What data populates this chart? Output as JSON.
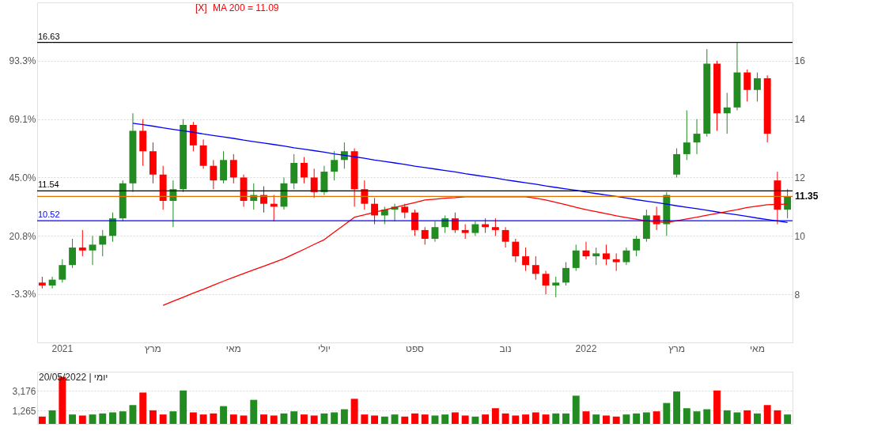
{
  "chart_data": [
    {
      "type": "candlestick",
      "categories": [
        null,
        null,
        "2021",
        null,
        null,
        null,
        null,
        null,
        null,
        null,
        null,
        "מרץ",
        null,
        null,
        null,
        null,
        null,
        null,
        null,
        "מאי",
        null,
        null,
        null,
        null,
        null,
        null,
        null,
        null,
        "יולי",
        null,
        null,
        null,
        null,
        null,
        null,
        null,
        null,
        "ספט",
        null,
        null,
        null,
        null,
        null,
        null,
        null,
        null,
        "נוב",
        null,
        null,
        null,
        null,
        null,
        null,
        null,
        "2022",
        null,
        null,
        null,
        null,
        null,
        null,
        null,
        null,
        "מרץ",
        null,
        null,
        null,
        null,
        null,
        null,
        null,
        "מאי",
        null,
        null,
        null
      ],
      "ohlc": [
        [
          8.4,
          8.6,
          8.2,
          8.3
        ],
        [
          8.3,
          8.6,
          8.2,
          8.5
        ],
        [
          8.5,
          9.2,
          8.4,
          9.0
        ],
        [
          9.0,
          9.9,
          8.9,
          9.6
        ],
        [
          9.6,
          10.2,
          9.3,
          9.5
        ],
        [
          9.5,
          10.0,
          9.0,
          9.7
        ],
        [
          9.7,
          10.2,
          9.3,
          10.0
        ],
        [
          10.0,
          10.8,
          9.8,
          10.6
        ],
        [
          10.6,
          11.9,
          10.5,
          11.8
        ],
        [
          11.8,
          14.2,
          11.5,
          13.6
        ],
        [
          13.6,
          14.0,
          12.4,
          12.9
        ],
        [
          12.9,
          13.2,
          11.8,
          12.1
        ],
        [
          12.1,
          12.4,
          10.9,
          11.2
        ],
        [
          11.2,
          11.9,
          10.3,
          11.6
        ],
        [
          11.6,
          14.0,
          11.5,
          13.8
        ],
        [
          13.8,
          13.9,
          12.9,
          13.1
        ],
        [
          13.1,
          13.3,
          12.3,
          12.4
        ],
        [
          12.4,
          12.6,
          11.6,
          11.9
        ],
        [
          11.9,
          12.9,
          11.8,
          12.6
        ],
        [
          12.6,
          12.8,
          11.8,
          12.0
        ],
        [
          12.0,
          12.1,
          11.0,
          11.2
        ],
        [
          11.2,
          11.8,
          10.9,
          11.4
        ],
        [
          11.4,
          11.7,
          10.8,
          11.1
        ],
        [
          11.1,
          11.4,
          10.5,
          11.0
        ],
        [
          11.0,
          12.0,
          10.9,
          11.8
        ],
        [
          11.8,
          12.8,
          11.6,
          12.5
        ],
        [
          12.5,
          12.7,
          11.8,
          12.0
        ],
        [
          12.0,
          12.3,
          11.3,
          11.5
        ],
        [
          11.5,
          12.4,
          11.4,
          12.2
        ],
        [
          12.2,
          12.9,
          11.9,
          12.6
        ],
        [
          12.6,
          13.2,
          12.3,
          12.9
        ],
        [
          12.9,
          13.0,
          11.0,
          11.6
        ],
        [
          11.6,
          11.9,
          10.9,
          11.1
        ],
        [
          11.1,
          11.3,
          10.4,
          10.7
        ],
        [
          10.7,
          11.0,
          10.4,
          10.9
        ],
        [
          10.9,
          11.1,
          10.5,
          11.0
        ],
        [
          11.0,
          11.1,
          10.6,
          10.8
        ],
        [
          10.8,
          10.9,
          10.0,
          10.2
        ],
        [
          10.2,
          10.3,
          9.7,
          9.9
        ],
        [
          9.9,
          10.5,
          9.8,
          10.3
        ],
        [
          10.3,
          10.7,
          10.1,
          10.6
        ],
        [
          10.6,
          10.8,
          10.1,
          10.2
        ],
        [
          10.2,
          10.4,
          9.9,
          10.1
        ],
        [
          10.1,
          10.5,
          10.0,
          10.4
        ],
        [
          10.4,
          10.6,
          10.1,
          10.3
        ],
        [
          10.3,
          10.6,
          10.0,
          10.2
        ],
        [
          10.2,
          10.3,
          9.6,
          9.8
        ],
        [
          9.8,
          9.9,
          9.1,
          9.3
        ],
        [
          9.3,
          9.6,
          8.8,
          9.0
        ],
        [
          9.0,
          9.3,
          8.5,
          8.7
        ],
        [
          8.7,
          8.8,
          8.0,
          8.3
        ],
        [
          8.3,
          8.6,
          7.9,
          8.4
        ],
        [
          8.4,
          9.1,
          8.3,
          8.9
        ],
        [
          8.9,
          9.7,
          8.8,
          9.5
        ],
        [
          9.5,
          9.8,
          9.2,
          9.3
        ],
        [
          9.3,
          9.6,
          9.0,
          9.4
        ],
        [
          9.4,
          9.7,
          9.0,
          9.2
        ],
        [
          9.2,
          9.4,
          8.8,
          9.1
        ],
        [
          9.1,
          9.6,
          9.0,
          9.5
        ],
        [
          9.5,
          10.0,
          9.3,
          9.9
        ],
        [
          9.9,
          10.9,
          9.8,
          10.7
        ],
        [
          10.7,
          11.0,
          10.2,
          10.4
        ],
        [
          10.4,
          11.5,
          10.0,
          11.4
        ],
        [
          12.1,
          13.0,
          12.0,
          12.8
        ],
        [
          12.8,
          14.3,
          12.6,
          13.2
        ],
        [
          13.2,
          14.0,
          12.8,
          13.5
        ],
        [
          13.5,
          16.4,
          13.4,
          15.9
        ],
        [
          15.9,
          16.0,
          13.6,
          14.2
        ],
        [
          14.2,
          14.9,
          13.5,
          14.4
        ],
        [
          14.4,
          16.63,
          14.3,
          15.6
        ],
        [
          15.6,
          15.7,
          14.6,
          15.0
        ],
        [
          15.0,
          15.6,
          14.6,
          15.4
        ],
        [
          15.4,
          15.5,
          13.2,
          13.5
        ],
        [
          11.9,
          12.2,
          10.4,
          10.9
        ],
        [
          10.9,
          11.6,
          10.6,
          11.35
        ]
      ],
      "colors": [
        "#ff0000",
        "#228b22",
        "#228b22",
        "#228b22",
        "#ff0000",
        "#228b22",
        "#228b22",
        "#228b22",
        "#228b22",
        "#228b22",
        "#ff0000",
        "#ff0000",
        "#ff0000",
        "#228b22",
        "#228b22",
        "#ff0000",
        "#ff0000",
        "#ff0000",
        "#228b22",
        "#ff0000",
        "#ff0000",
        "#228b22",
        "#ff0000",
        "#ff0000",
        "#228b22",
        "#228b22",
        "#ff0000",
        "#ff0000",
        "#228b22",
        "#228b22",
        "#228b22",
        "#ff0000",
        "#ff0000",
        "#ff0000",
        "#228b22",
        "#228b22",
        "#ff0000",
        "#ff0000",
        "#ff0000",
        "#228b22",
        "#228b22",
        "#ff0000",
        "#ff0000",
        "#228b22",
        "#ff0000",
        "#ff0000",
        "#ff0000",
        "#ff0000",
        "#ff0000",
        "#ff0000",
        "#ff0000",
        "#228b22",
        "#228b22",
        "#228b22",
        "#ff0000",
        "#228b22",
        "#ff0000",
        "#ff0000",
        "#228b22",
        "#228b22",
        "#228b22",
        "#ff0000",
        "#228b22",
        "#228b22",
        "#228b22",
        "#228b22",
        "#228b22",
        "#ff0000",
        "#228b22",
        "#228b22",
        "#ff0000",
        "#228b22",
        "#ff0000",
        "#ff0000",
        "#228b22"
      ],
      "series": [
        {
          "type": "line",
          "color": "#0000ff",
          "values": [
            null,
            null,
            null,
            null,
            null,
            null,
            null,
            null,
            null,
            13.86,
            13.81,
            13.76,
            13.7,
            13.65,
            13.6,
            13.55,
            13.49,
            13.44,
            13.39,
            13.34,
            13.28,
            13.23,
            13.18,
            13.13,
            13.08,
            13.02,
            12.97,
            12.92,
            12.87,
            12.81,
            12.76,
            12.71,
            12.66,
            12.6,
            12.55,
            12.5,
            12.45,
            12.39,
            12.34,
            12.29,
            12.24,
            12.19,
            12.13,
            12.08,
            12.03,
            11.98,
            11.92,
            11.87,
            11.82,
            11.77,
            11.71,
            11.66,
            11.61,
            11.56,
            11.5,
            11.45,
            11.4,
            11.35,
            11.3,
            11.24,
            11.19,
            11.14,
            11.09,
            11.03,
            10.98,
            10.93,
            10.88,
            10.82,
            10.77,
            10.72,
            10.67,
            10.61,
            10.56,
            10.51,
            10.46
          ]
        },
        {
          "type": "line",
          "name": "MA 200 = 11.09",
          "color": "#ff0000",
          "values": [
            null,
            null,
            null,
            null,
            null,
            null,
            null,
            null,
            null,
            null,
            null,
            null,
            7.62,
            7.76,
            7.9,
            8.04,
            8.17,
            8.31,
            8.45,
            8.58,
            8.71,
            8.84,
            8.96,
            9.09,
            9.22,
            9.38,
            9.54,
            9.71,
            9.87,
            10.13,
            10.38,
            10.64,
            10.72,
            10.81,
            10.89,
            10.97,
            11.06,
            11.14,
            11.23,
            11.26,
            11.29,
            11.31,
            11.34,
            11.34,
            11.34,
            11.34,
            11.34,
            11.34,
            11.34,
            11.29,
            11.23,
            11.15,
            11.07,
            10.98,
            10.9,
            10.83,
            10.76,
            10.69,
            10.63,
            10.57,
            10.51,
            10.48,
            10.46,
            10.52,
            10.58,
            10.64,
            10.71,
            10.77,
            10.84,
            10.9,
            10.97,
            11.02,
            11.07,
            11.08,
            11.09
          ]
        }
      ],
      "ylim": [
        6.35,
        18.0
      ],
      "yticks": [
        8,
        10,
        12,
        14,
        16
      ],
      "y2lim": [
        -23.4,
        117.5
      ],
      "y2ticks": [
        {
          "value": -3.3,
          "label": "-3.3%"
        },
        {
          "value": 20.8,
          "label": "20.8%"
        },
        {
          "value": 45.0,
          "label": "45.0%"
        },
        {
          "value": 69.1,
          "label": "69.1%"
        },
        {
          "value": 93.3,
          "label": "93.3%"
        }
      ],
      "ref_lines": [
        {
          "axis": "y",
          "value": 16.63,
          "label": "16.63",
          "color": "#000000"
        },
        {
          "axis": "y",
          "value": 11.54,
          "label": "11.54",
          "color": "#000000"
        },
        {
          "axis": "y",
          "value": 11.35,
          "label": "11.35",
          "color": "#e07000"
        },
        {
          "axis": "y",
          "value": 10.52,
          "label": "10.52",
          "color": "#0000ff"
        }
      ],
      "annotations": [
        "[X]"
      ],
      "grid": "y",
      "legend": "top"
    },
    {
      "type": "bar",
      "categories": [
        null,
        null,
        null,
        null,
        null,
        null,
        null,
        null,
        null,
        null,
        null,
        null,
        null,
        null,
        null,
        null,
        null,
        null,
        null,
        null,
        null,
        null,
        null,
        null,
        null,
        null,
        null,
        null,
        null,
        null,
        null,
        null,
        null,
        null,
        null,
        null,
        null,
        null,
        null,
        null,
        null,
        null,
        null,
        null,
        null,
        null,
        null,
        null,
        null,
        null,
        null,
        null,
        null,
        null,
        null,
        null,
        null,
        null,
        null,
        null,
        null,
        null,
        null,
        null,
        null,
        null,
        null,
        null,
        null,
        null,
        null,
        null,
        null,
        null,
        null
      ],
      "values": [
        700,
        1300,
        4500,
        900,
        800,
        900,
        1000,
        1100,
        1200,
        1800,
        3000,
        1300,
        900,
        1200,
        3200,
        1100,
        900,
        1000,
        1700,
        900,
        800,
        2300,
        900,
        800,
        1000,
        1200,
        900,
        800,
        1000,
        1100,
        1400,
        2400,
        900,
        800,
        700,
        900,
        700,
        1000,
        900,
        800,
        900,
        1100,
        800,
        700,
        900,
        1500,
        1000,
        800,
        900,
        1100,
        900,
        1000,
        1000,
        2700,
        1200,
        900,
        800,
        700,
        900,
        1000,
        1100,
        1200,
        2000,
        3100,
        1500,
        1200,
        1400,
        3200,
        1300,
        1100,
        1300,
        1000,
        1800,
        1300,
        900
      ],
      "colors": [
        "#ff0000",
        "#228b22",
        "#ff0000",
        "#228b22",
        "#ff0000",
        "#228b22",
        "#228b22",
        "#228b22",
        "#228b22",
        "#228b22",
        "#ff0000",
        "#ff0000",
        "#ff0000",
        "#228b22",
        "#228b22",
        "#ff0000",
        "#ff0000",
        "#ff0000",
        "#228b22",
        "#ff0000",
        "#ff0000",
        "#228b22",
        "#ff0000",
        "#ff0000",
        "#228b22",
        "#228b22",
        "#ff0000",
        "#ff0000",
        "#228b22",
        "#228b22",
        "#228b22",
        "#ff0000",
        "#ff0000",
        "#ff0000",
        "#228b22",
        "#228b22",
        "#ff0000",
        "#ff0000",
        "#ff0000",
        "#228b22",
        "#228b22",
        "#ff0000",
        "#ff0000",
        "#228b22",
        "#ff0000",
        "#ff0000",
        "#ff0000",
        "#ff0000",
        "#ff0000",
        "#ff0000",
        "#ff0000",
        "#228b22",
        "#228b22",
        "#228b22",
        "#ff0000",
        "#228b22",
        "#ff0000",
        "#ff0000",
        "#228b22",
        "#228b22",
        "#228b22",
        "#ff0000",
        "#228b22",
        "#228b22",
        "#228b22",
        "#228b22",
        "#228b22",
        "#ff0000",
        "#228b22",
        "#228b22",
        "#ff0000",
        "#228b22",
        "#ff0000",
        "#ff0000",
        "#228b22"
      ],
      "ylim": [
        0,
        5000
      ],
      "yticks": [
        {
          "value": 1265,
          "label": "1,265"
        },
        {
          "value": 3176,
          "label": "3,176"
        }
      ],
      "tick_labels": "y",
      "grid": "y",
      "annotations": [
        "20/05/2022 | יומי"
      ]
    }
  ]
}
